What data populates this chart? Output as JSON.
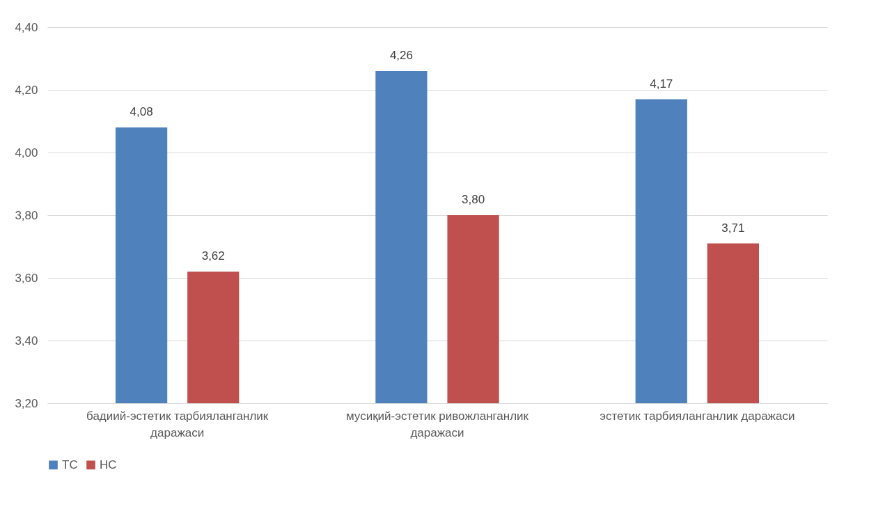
{
  "chart_data": {
    "type": "bar",
    "categories": [
      "бадиий-эстетик тарбияланганлик даражаси",
      "мусиқий-эстетик ривожланганлик даражаси",
      "эстетик тарбияланганлик даражаси"
    ],
    "series": [
      {
        "name": "ТС",
        "color": "#4f81bd",
        "values": [
          4.08,
          4.26,
          4.17
        ],
        "value_labels": [
          "4,08",
          "4,26",
          "4,17"
        ]
      },
      {
        "name": "НС",
        "color": "#c0504d",
        "values": [
          3.62,
          3.8,
          3.71
        ],
        "value_labels": [
          "3,62",
          "3,80",
          "3,71"
        ]
      }
    ],
    "ylim": [
      3.2,
      4.4
    ],
    "yticks": [
      {
        "value": 3.2,
        "label": "3,20"
      },
      {
        "value": 3.4,
        "label": "3,40"
      },
      {
        "value": 3.6,
        "label": "3,60"
      },
      {
        "value": 3.8,
        "label": "3,80"
      },
      {
        "value": 4.0,
        "label": "4,00"
      },
      {
        "value": 4.2,
        "label": "4,20"
      },
      {
        "value": 4.4,
        "label": "4,40"
      }
    ],
    "grid": "y",
    "legend": "bottom"
  }
}
